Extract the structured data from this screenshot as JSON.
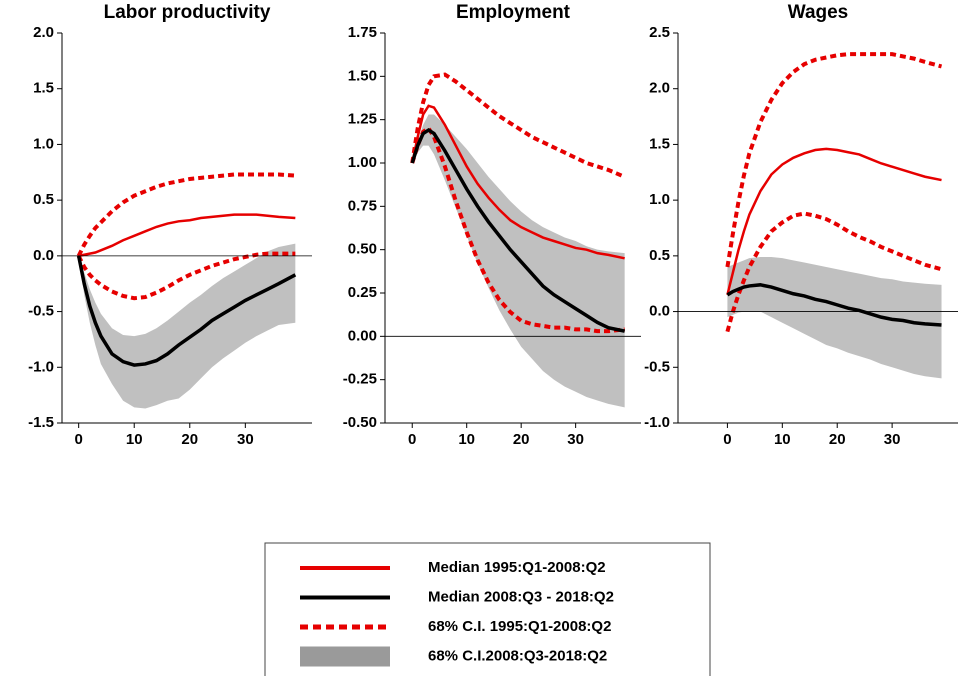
{
  "chart_data": [
    {
      "type": "line",
      "title": "Labor productivity",
      "x": [
        0,
        1,
        2,
        3,
        4,
        6,
        8,
        10,
        12,
        14,
        16,
        18,
        20,
        22,
        24,
        26,
        28,
        30,
        32,
        34,
        36,
        39
      ],
      "xlim": [
        -3,
        42
      ],
      "xticks": [
        0,
        10,
        20,
        30
      ],
      "ylim": [
        -1.5,
        2.0
      ],
      "yticks": [
        -1.5,
        {
          "value": -1.0,
          "label": "-1.0"
        },
        -0.5,
        {
          "value": 0,
          "label": "0.0"
        },
        0.5,
        {
          "value": 1.0,
          "label": "1.0"
        },
        1.5,
        {
          "value": 2.0,
          "label": "2.0"
        }
      ],
      "zero_line": true,
      "series": [
        {
          "style": "solid",
          "color": "#e60000",
          "values": [
            0,
            0.01,
            0.02,
            0.03,
            0.05,
            0.09,
            0.14,
            0.18,
            0.22,
            0.26,
            0.29,
            0.31,
            0.32,
            0.34,
            0.35,
            0.36,
            0.37,
            0.37,
            0.37,
            0.36,
            0.35,
            0.34
          ]
        },
        {
          "style": "solid",
          "color": "#000000",
          "values": [
            0,
            -0.25,
            -0.45,
            -0.6,
            -0.72,
            -0.88,
            -0.95,
            -0.98,
            -0.97,
            -0.94,
            -0.88,
            -0.8,
            -0.73,
            -0.66,
            -0.58,
            -0.52,
            -0.46,
            -0.4,
            -0.35,
            -0.3,
            -0.25,
            -0.17
          ]
        },
        {
          "style": "dashed",
          "color": "#e60000",
          "upper": [
            0,
            0.1,
            0.18,
            0.25,
            0.3,
            0.4,
            0.48,
            0.54,
            0.58,
            0.62,
            0.65,
            0.67,
            0.69,
            0.7,
            0.71,
            0.72,
            0.73,
            0.73,
            0.73,
            0.73,
            0.73,
            0.72
          ],
          "lower": [
            0,
            -0.1,
            -0.17,
            -0.22,
            -0.26,
            -0.32,
            -0.36,
            -0.38,
            -0.37,
            -0.33,
            -0.28,
            -0.22,
            -0.17,
            -0.13,
            -0.09,
            -0.06,
            -0.03,
            -0.01,
            0.01,
            0.02,
            0.02,
            0.02
          ]
        },
        {
          "style": "band",
          "color": "#c0c0c0",
          "upper": [
            0,
            -0.15,
            -0.3,
            -0.42,
            -0.52,
            -0.65,
            -0.71,
            -0.72,
            -0.7,
            -0.65,
            -0.58,
            -0.5,
            -0.42,
            -0.35,
            -0.27,
            -0.2,
            -0.14,
            -0.08,
            -0.02,
            0.04,
            0.08,
            0.11
          ],
          "lower": [
            0,
            -0.35,
            -0.6,
            -0.8,
            -0.97,
            -1.15,
            -1.3,
            -1.36,
            -1.37,
            -1.34,
            -1.3,
            -1.28,
            -1.2,
            -1.1,
            -1.0,
            -0.92,
            -0.85,
            -0.78,
            -0.72,
            -0.67,
            -0.62,
            -0.6
          ]
        }
      ]
    },
    {
      "type": "line",
      "title": "Employment",
      "x": [
        0,
        1,
        2,
        3,
        4,
        6,
        8,
        10,
        12,
        14,
        16,
        18,
        20,
        22,
        24,
        26,
        28,
        30,
        32,
        34,
        36,
        39
      ],
      "xlim": [
        -5,
        42
      ],
      "xticks": [
        0,
        10,
        20,
        30
      ],
      "ylim": [
        -0.5,
        1.75
      ],
      "yticks": [
        {
          "value": -0.5,
          "label": "-0.50"
        },
        -0.25,
        {
          "value": 0,
          "label": "0.00"
        },
        0.25,
        {
          "value": 0.5,
          "label": "0.50"
        },
        0.75,
        {
          "value": 1.0,
          "label": "1.00"
        },
        1.25,
        {
          "value": 1.5,
          "label": "1.50"
        },
        1.75
      ],
      "zero_line": true,
      "series": [
        {
          "style": "solid",
          "color": "#e60000",
          "values": [
            1.0,
            1.15,
            1.28,
            1.33,
            1.32,
            1.22,
            1.1,
            0.98,
            0.88,
            0.8,
            0.73,
            0.67,
            0.63,
            0.6,
            0.57,
            0.55,
            0.53,
            0.51,
            0.5,
            0.48,
            0.47,
            0.45
          ]
        },
        {
          "style": "solid",
          "color": "#000000",
          "values": [
            1.0,
            1.1,
            1.17,
            1.19,
            1.17,
            1.07,
            0.96,
            0.85,
            0.75,
            0.66,
            0.58,
            0.5,
            0.43,
            0.36,
            0.29,
            0.24,
            0.2,
            0.16,
            0.12,
            0.08,
            0.05,
            0.03
          ]
        },
        {
          "style": "dashed",
          "color": "#e60000",
          "upper": [
            1.0,
            1.2,
            1.35,
            1.45,
            1.5,
            1.51,
            1.47,
            1.42,
            1.37,
            1.32,
            1.27,
            1.23,
            1.19,
            1.15,
            1.12,
            1.09,
            1.06,
            1.03,
            1.0,
            0.98,
            0.96,
            0.92
          ],
          "lower": [
            1.0,
            1.1,
            1.18,
            1.2,
            1.15,
            0.98,
            0.78,
            0.6,
            0.44,
            0.31,
            0.21,
            0.14,
            0.09,
            0.07,
            0.06,
            0.05,
            0.05,
            0.04,
            0.04,
            0.03,
            0.03,
            0.04
          ]
        },
        {
          "style": "band",
          "color": "#c0c0c0",
          "upper": [
            1.0,
            1.12,
            1.22,
            1.28,
            1.28,
            1.22,
            1.15,
            1.08,
            1.0,
            0.92,
            0.85,
            0.78,
            0.72,
            0.67,
            0.63,
            0.6,
            0.57,
            0.55,
            0.52,
            0.5,
            0.49,
            0.48
          ],
          "lower": [
            1.0,
            1.06,
            1.1,
            1.1,
            1.05,
            0.9,
            0.74,
            0.58,
            0.42,
            0.28,
            0.15,
            0.04,
            -0.06,
            -0.13,
            -0.2,
            -0.25,
            -0.29,
            -0.32,
            -0.35,
            -0.37,
            -0.39,
            -0.41
          ]
        }
      ]
    },
    {
      "type": "line",
      "title": "Wages",
      "x": [
        0,
        1,
        2,
        3,
        4,
        6,
        8,
        10,
        12,
        14,
        16,
        18,
        20,
        22,
        24,
        26,
        28,
        30,
        32,
        34,
        36,
        39
      ],
      "xlim": [
        -9,
        42
      ],
      "xticks": [
        0,
        10,
        20,
        30
      ],
      "ylim": [
        -1.0,
        2.5
      ],
      "yticks": [
        {
          "value": -1.0,
          "label": "-1.0"
        },
        -0.5,
        {
          "value": 0,
          "label": "0.0"
        },
        0.5,
        {
          "value": 1.0,
          "label": "1.0"
        },
        1.5,
        {
          "value": 2.0,
          "label": "2.0"
        },
        2.5
      ],
      "zero_line": true,
      "series": [
        {
          "style": "solid",
          "color": "#e60000",
          "values": [
            0.15,
            0.35,
            0.55,
            0.72,
            0.87,
            1.08,
            1.23,
            1.32,
            1.38,
            1.42,
            1.45,
            1.46,
            1.45,
            1.43,
            1.41,
            1.37,
            1.33,
            1.3,
            1.27,
            1.24,
            1.21,
            1.18
          ]
        },
        {
          "style": "solid",
          "color": "#000000",
          "values": [
            0.15,
            0.18,
            0.2,
            0.22,
            0.23,
            0.24,
            0.22,
            0.19,
            0.16,
            0.14,
            0.11,
            0.09,
            0.06,
            0.03,
            0.01,
            -0.02,
            -0.05,
            -0.07,
            -0.08,
            -0.1,
            -0.11,
            -0.12
          ]
        },
        {
          "style": "dashed",
          "color": "#e60000",
          "upper": [
            0.4,
            0.7,
            0.98,
            1.22,
            1.42,
            1.7,
            1.9,
            2.05,
            2.15,
            2.22,
            2.26,
            2.28,
            2.3,
            2.31,
            2.31,
            2.31,
            2.31,
            2.31,
            2.29,
            2.27,
            2.24,
            2.2
          ],
          "lower": [
            -0.18,
            0.0,
            0.15,
            0.28,
            0.4,
            0.58,
            0.72,
            0.8,
            0.86,
            0.88,
            0.86,
            0.83,
            0.78,
            0.72,
            0.67,
            0.63,
            0.58,
            0.54,
            0.5,
            0.46,
            0.42,
            0.38
          ]
        },
        {
          "style": "band",
          "color": "#c0c0c0",
          "upper": [
            0.4,
            0.42,
            0.44,
            0.46,
            0.48,
            0.49,
            0.49,
            0.48,
            0.46,
            0.44,
            0.42,
            0.4,
            0.38,
            0.36,
            0.34,
            0.32,
            0.3,
            0.29,
            0.27,
            0.26,
            0.25,
            0.24
          ],
          "lower": [
            -0.05,
            -0.03,
            -0.01,
            0.0,
            0.0,
            0.0,
            -0.05,
            -0.1,
            -0.15,
            -0.2,
            -0.25,
            -0.3,
            -0.33,
            -0.37,
            -0.4,
            -0.43,
            -0.47,
            -0.5,
            -0.53,
            -0.56,
            -0.58,
            -0.6
          ]
        }
      ]
    }
  ],
  "legend": [
    {
      "name": "Median 1995:Q1-2008:Q2",
      "color": "#e60000",
      "style": "solid"
    },
    {
      "name": "Median 2008:Q3 - 2018:Q2",
      "color": "#000000",
      "style": "solid"
    },
    {
      "name": "68% C.I. 1995:Q1-2008:Q2",
      "color": "#e60000",
      "style": "dashed"
    },
    {
      "name": "68% C.I.2008:Q3-2018:Q2",
      "color": "#9a9a9a",
      "style": "band"
    }
  ]
}
